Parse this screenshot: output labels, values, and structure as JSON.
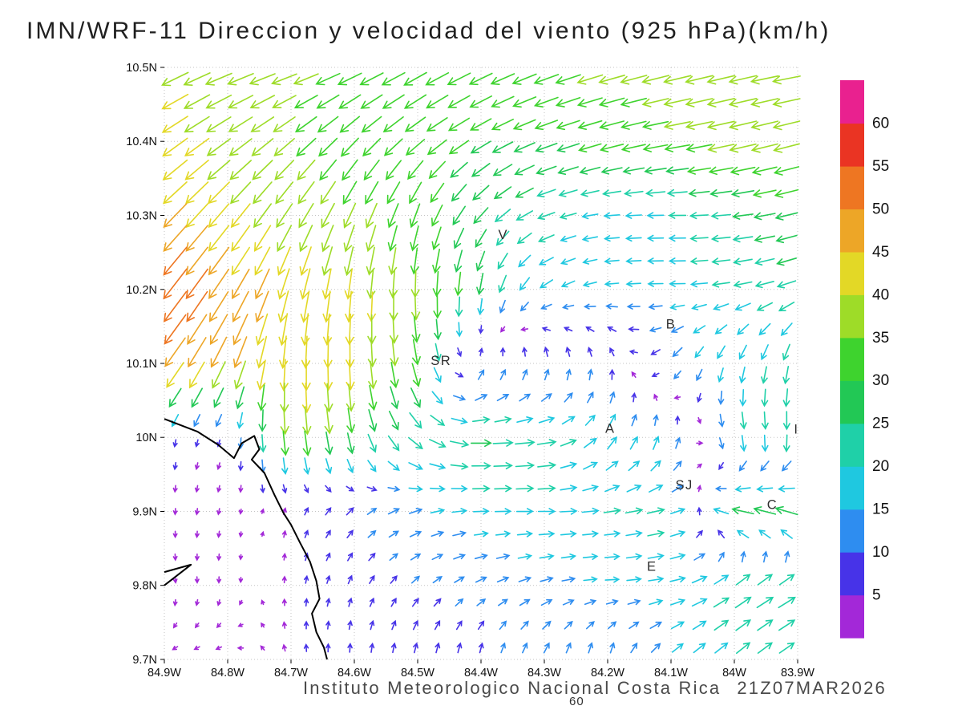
{
  "title": "IMN/WRF-11 Direccion y velocidad del viento (925 hPa)(km/h)",
  "footer": {
    "credit": "Instituto Meteorologico Nacional Costa Rica",
    "timestamp": "21Z07MAR2026",
    "stray_label": "60"
  },
  "chart_data": {
    "type": "quiver",
    "title": "IMN/WRF-11 Direccion y velocidad del viento (925 hPa)(km/h)",
    "xlabel": "",
    "ylabel": "",
    "grid": true,
    "lon_range": [
      -84.9,
      -83.9
    ],
    "lat_range": [
      9.7,
      10.5
    ],
    "lon_ticks": {
      "labels": [
        "84.9W",
        "84.8W",
        "84.7W",
        "84.6W",
        "84.5W",
        "84.4W",
        "84.3W",
        "84.2W",
        "84.1W",
        "84W",
        "83.9W"
      ],
      "values": [
        -84.9,
        -84.8,
        -84.7,
        -84.6,
        -84.5,
        -84.4,
        -84.3,
        -84.2,
        -84.1,
        -84.0,
        -83.9
      ]
    },
    "lat_ticks": {
      "labels": [
        "10.5N",
        "10.4N",
        "10.3N",
        "10.2N",
        "10.1N",
        "10N",
        "9.9N",
        "9.8N",
        "9.7N"
      ],
      "values": [
        10.5,
        10.4,
        10.3,
        10.2,
        10.1,
        10.0,
        9.9,
        9.8,
        9.7
      ]
    },
    "colorbar": {
      "units": "km/h",
      "levels": [
        5,
        10,
        15,
        20,
        25,
        30,
        35,
        40,
        45,
        50,
        55,
        60
      ],
      "colors": [
        "#a328d8",
        "#4733e8",
        "#2e8df0",
        "#1fc8e0",
        "#1fd0a8",
        "#22c855",
        "#3ed32e",
        "#9edc28",
        "#e3d826",
        "#eda627",
        "#ee7622",
        "#ea3423",
        "#e9218f"
      ]
    },
    "stations": [
      {
        "label": "V",
        "lon": -84.365,
        "lat": 10.268
      },
      {
        "label": "B",
        "lon": -84.1,
        "lat": 10.147
      },
      {
        "label": "SR",
        "lon": -84.463,
        "lat": 10.098
      },
      {
        "label": "A",
        "lon": -84.196,
        "lat": 10.006
      },
      {
        "label": "I",
        "lon": -83.902,
        "lat": 10.005
      },
      {
        "label": "SJ",
        "lon": -84.079,
        "lat": 9.93
      },
      {
        "label": "C",
        "lon": -83.94,
        "lat": 9.903
      },
      {
        "label": "E",
        "lon": -84.13,
        "lat": 9.82
      }
    ],
    "coastline": {
      "main": [
        [
          -84.9,
          10.025
        ],
        [
          -84.848,
          10.008
        ],
        [
          -84.815,
          9.99
        ],
        [
          -84.79,
          9.972
        ],
        [
          -84.778,
          9.992
        ],
        [
          -84.758,
          10.002
        ],
        [
          -84.75,
          9.984
        ],
        [
          -84.762,
          9.97
        ],
        [
          -84.742,
          9.952
        ],
        [
          -84.726,
          9.922
        ],
        [
          -84.712,
          9.898
        ],
        [
          -84.7,
          9.882
        ],
        [
          -84.686,
          9.858
        ],
        [
          -84.67,
          9.832
        ],
        [
          -84.66,
          9.806
        ],
        [
          -84.655,
          9.782
        ],
        [
          -84.667,
          9.762
        ],
        [
          -84.66,
          9.737
        ],
        [
          -84.648,
          9.716
        ],
        [
          -84.643,
          9.7
        ]
      ],
      "peninsula": [
        [
          -84.9,
          9.8
        ],
        [
          -84.858,
          9.828
        ],
        [
          -84.9,
          9.818
        ]
      ]
    },
    "wind_field": {
      "convention": "each cell is [direction_toward_deg_math(0=E,90=N), speed_kmh]",
      "lons": [
        -84.9,
        -84.8,
        -84.7,
        -84.6,
        -84.5,
        -84.4,
        -84.3,
        -84.2,
        -84.1,
        -84.0,
        -83.9
      ],
      "lats": [
        10.5,
        10.4,
        10.3,
        10.2,
        10.1,
        10.0,
        9.9,
        9.8,
        9.7
      ],
      "vectors": [
        [
          [
            205,
            40
          ],
          [
            200,
            38
          ],
          [
            198,
            36
          ],
          [
            203,
            35
          ],
          [
            208,
            35
          ],
          [
            205,
            34
          ],
          [
            200,
            35
          ],
          [
            196,
            36
          ],
          [
            194,
            38
          ],
          [
            193,
            38
          ],
          [
            190,
            38
          ]
        ],
        [
          [
            215,
            42
          ],
          [
            215,
            38
          ],
          [
            220,
            35
          ],
          [
            225,
            33
          ],
          [
            218,
            32
          ],
          [
            210,
            30
          ],
          [
            200,
            30
          ],
          [
            195,
            32
          ],
          [
            190,
            34
          ],
          [
            193,
            37
          ],
          [
            195,
            36
          ]
        ],
        [
          [
            225,
            46
          ],
          [
            230,
            42
          ],
          [
            237,
            38
          ],
          [
            246,
            36
          ],
          [
            250,
            33
          ],
          [
            228,
            27
          ],
          [
            200,
            22
          ],
          [
            185,
            18
          ],
          [
            180,
            20
          ],
          [
            186,
            25
          ],
          [
            195,
            30
          ]
        ],
        [
          [
            232,
            55
          ],
          [
            237,
            49
          ],
          [
            255,
            44
          ],
          [
            264,
            42
          ],
          [
            270,
            36
          ],
          [
            262,
            28
          ],
          [
            215,
            17
          ],
          [
            185,
            15
          ],
          [
            180,
            18
          ],
          [
            190,
            22
          ],
          [
            200,
            24
          ]
        ],
        [
          [
            233,
            48
          ],
          [
            246,
            46
          ],
          [
            268,
            45
          ],
          [
            272,
            42
          ],
          [
            282,
            33
          ],
          [
            80,
            12
          ],
          [
            90,
            12
          ],
          [
            95,
            10
          ],
          [
            230,
            14
          ],
          [
            252,
            19
          ],
          [
            258,
            22
          ]
        ],
        [
          [
            260,
            6
          ],
          [
            250,
            5
          ],
          [
            276,
            38
          ],
          [
            282,
            29
          ],
          [
            320,
            23
          ],
          [
            0,
            26
          ],
          [
            8,
            24
          ],
          [
            55,
            18
          ],
          [
            80,
            16
          ],
          [
            285,
            21
          ],
          [
            272,
            23
          ]
        ],
        [
          [
            268,
            4
          ],
          [
            258,
            4
          ],
          [
            75,
            6
          ],
          [
            45,
            10
          ],
          [
            18,
            15
          ],
          [
            2,
            18
          ],
          [
            0,
            20
          ],
          [
            8,
            20
          ],
          [
            14,
            22
          ],
          [
            168,
            28
          ],
          [
            163,
            30
          ]
        ],
        [
          [
            280,
            4
          ],
          [
            268,
            4
          ],
          [
            88,
            5
          ],
          [
            68,
            8
          ],
          [
            44,
            10
          ],
          [
            28,
            12
          ],
          [
            18,
            14
          ],
          [
            2,
            15
          ],
          [
            10,
            18
          ],
          [
            33,
            24
          ],
          [
            30,
            26
          ]
        ],
        [
          [
            205,
            4
          ],
          [
            192,
            4
          ],
          [
            100,
            5
          ],
          [
            88,
            8
          ],
          [
            80,
            10
          ],
          [
            84,
            10
          ],
          [
            70,
            12
          ],
          [
            88,
            12
          ],
          [
            44,
            15
          ],
          [
            40,
            20
          ],
          [
            35,
            22
          ]
        ]
      ]
    }
  }
}
